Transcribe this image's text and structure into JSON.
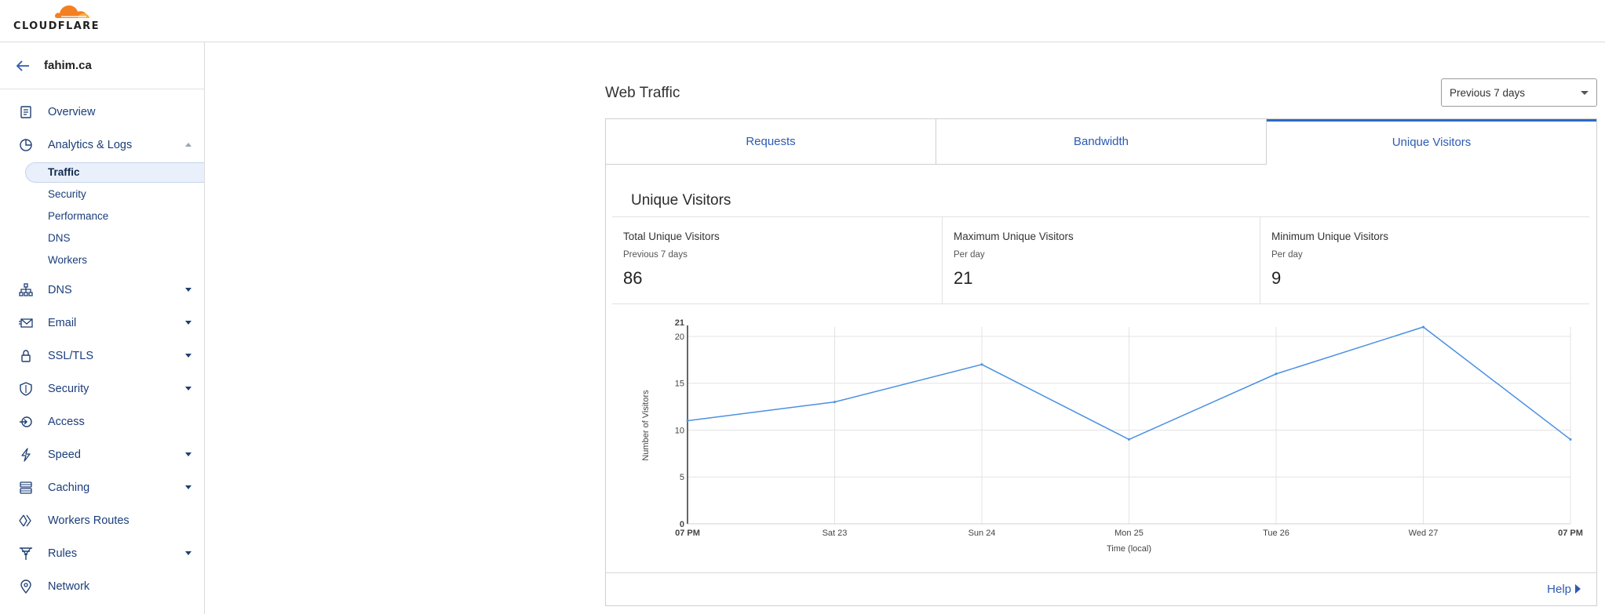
{
  "brand": {
    "logo_text": "CLOUDFLARE",
    "accent": "#f38020"
  },
  "sidebar": {
    "zone": "fahim.ca",
    "items": [
      {
        "label": "Overview",
        "icon": "document-icon",
        "caret": "none"
      },
      {
        "label": "Analytics & Logs",
        "icon": "pie-chart-icon",
        "caret": "up"
      },
      {
        "label": "DNS",
        "icon": "sitemap-icon",
        "caret": "down"
      },
      {
        "label": "Email",
        "icon": "envelope-icon",
        "caret": "down"
      },
      {
        "label": "SSL/TLS",
        "icon": "lock-icon",
        "caret": "down"
      },
      {
        "label": "Security",
        "icon": "shield-icon",
        "caret": "down"
      },
      {
        "label": "Access",
        "icon": "access-icon",
        "caret": "none"
      },
      {
        "label": "Speed",
        "icon": "lightning-icon",
        "caret": "down"
      },
      {
        "label": "Caching",
        "icon": "server-icon",
        "caret": "down"
      },
      {
        "label": "Workers Routes",
        "icon": "workers-icon",
        "caret": "none"
      },
      {
        "label": "Rules",
        "icon": "funnel-icon",
        "caret": "down"
      },
      {
        "label": "Network",
        "icon": "location-pin-icon",
        "caret": "none"
      }
    ],
    "analytics_sub": [
      "Traffic",
      "Security",
      "Performance",
      "DNS",
      "Workers"
    ],
    "active_sub": "Traffic"
  },
  "main": {
    "title": "Web Traffic",
    "range": "Previous 7 days",
    "tabs": [
      "Requests",
      "Bandwidth",
      "Unique Visitors"
    ],
    "active_tab": "Unique Visitors",
    "panel_title": "Unique Visitors",
    "stats": [
      {
        "label": "Total Unique Visitors",
        "sub": "Previous 7 days",
        "value": "86"
      },
      {
        "label": "Maximum Unique Visitors",
        "sub": "Per day",
        "value": "21"
      },
      {
        "label": "Minimum Unique Visitors",
        "sub": "Per day",
        "value": "9"
      }
    ],
    "help": "Help"
  },
  "chart_data": {
    "type": "line",
    "ylabel": "Number of Visitors",
    "xlabel": "Time (local)",
    "x_ticks": [
      "07 PM",
      "Sat 23",
      "Sun 24",
      "Mon 25",
      "Tue 26",
      "Wed 27",
      "07 PM"
    ],
    "y_ticks": [
      0,
      5,
      10,
      15,
      20,
      21
    ],
    "ylim": [
      0,
      21
    ],
    "series": [
      {
        "values": [
          11,
          13,
          17,
          9,
          16,
          21,
          9
        ]
      }
    ],
    "line_color": "#4a90e2",
    "grid": true
  }
}
